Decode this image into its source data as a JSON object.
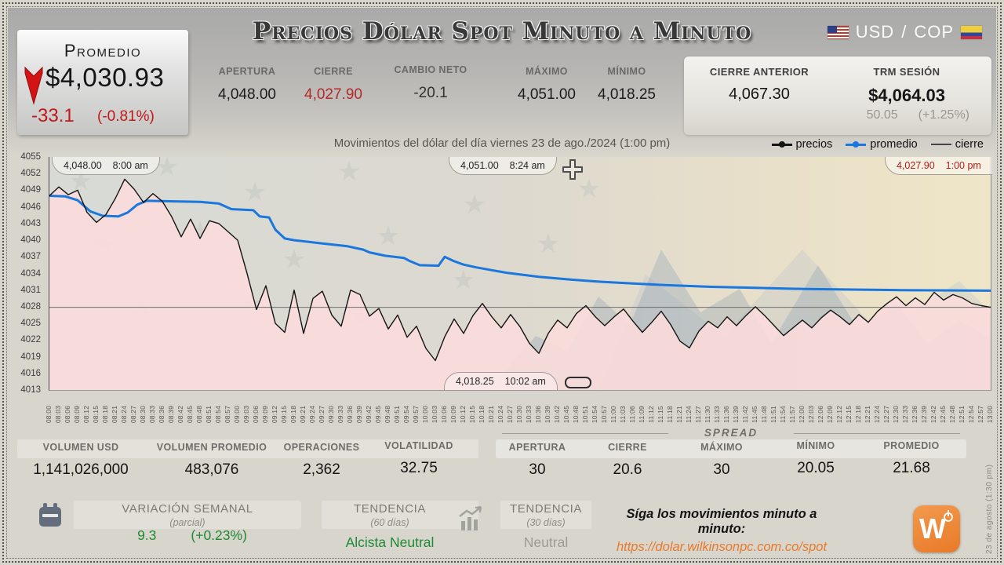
{
  "colors": {
    "accent_blue": "#1a77dd",
    "negative_red": "#c01818",
    "positive_green": "#1f8a34",
    "orange": "#e87a2a",
    "area_pink": "#fbdcdc",
    "price_black": "#141414",
    "cierre_grey": "#6e6e6e"
  },
  "header": {
    "title": "Precios Dólar Spot Minuto a Minuto",
    "pair": {
      "base": "USD",
      "sep": "/",
      "quote": "COP"
    },
    "promedio": {
      "label": "Promedio",
      "value": "$4,030.93",
      "change": "-33.1",
      "change_pct": "(-0.81%)"
    },
    "session_stats": [
      {
        "label": "APERTURA",
        "value": "4,048.00"
      },
      {
        "label": "CIERRE",
        "value": "4,027.90"
      },
      {
        "label": "CAMBIO NETO",
        "value": "-20.1"
      },
      {
        "label": "MÁXIMO",
        "value": "4,051.00"
      },
      {
        "label": "MÍNIMO",
        "value": "4,018.25"
      }
    ],
    "cierre_anterior": {
      "label": "CIERRE ANTERIOR",
      "value": "4,067.30"
    },
    "trm": {
      "label": "TRM SESIÓN",
      "value": "$4,064.03",
      "sub_value": "50.05",
      "sub_pct": "(+1.25%)"
    }
  },
  "chart_data": {
    "type": "line",
    "title": "Movimientos del dólar del día viernes 23 de ago./2024 (1:00 pm)",
    "ylabel": "",
    "xlabel": "",
    "ylim": [
      4013,
      4055
    ],
    "y_ticks": [
      4055,
      4052,
      4049,
      4046,
      4043,
      4040,
      4037,
      4034,
      4031,
      4028,
      4025,
      4022,
      4019,
      4016,
      4013
    ],
    "x_labels": [
      "08:00",
      "08:03",
      "08:06",
      "08:09",
      "08:12",
      "08:15",
      "08:18",
      "08:21",
      "08:24",
      "08:27",
      "08:30",
      "08:33",
      "08:36",
      "08:39",
      "08:42",
      "08:45",
      "08:48",
      "08:51",
      "08:54",
      "08:57",
      "09:00",
      "09:03",
      "09:06",
      "09:09",
      "09:12",
      "09:15",
      "09:18",
      "09:21",
      "09:24",
      "09:27",
      "09:30",
      "09:33",
      "09:36",
      "09:39",
      "09:42",
      "09:45",
      "09:48",
      "09:51",
      "09:54",
      "09:57",
      "10:00",
      "10:03",
      "10:06",
      "10:09",
      "10:12",
      "10:15",
      "10:18",
      "10:21",
      "10:24",
      "10:27",
      "10:30",
      "10:33",
      "10:36",
      "10:39",
      "10:42",
      "10:45",
      "10:48",
      "10:51",
      "10:54",
      "10:57",
      "11:00",
      "11:03",
      "11:06",
      "11:09",
      "11:12",
      "11:15",
      "11:18",
      "11:21",
      "11:24",
      "11:27",
      "11:30",
      "11:33",
      "11:36",
      "11:39",
      "11:42",
      "11:45",
      "11:48",
      "11:51",
      "11:54",
      "11:57",
      "12:00",
      "12:03",
      "12:06",
      "12:09",
      "12:12",
      "12:15",
      "12:18",
      "12:21",
      "12:24",
      "12:27",
      "12:30",
      "12:33",
      "12:36",
      "12:39",
      "12:42",
      "12:45",
      "12:48",
      "12:51",
      "12:54",
      "12:57",
      "13:00"
    ],
    "series": [
      {
        "name": "precios",
        "color": "#141414",
        "values": [
          4048.0,
          4049.6,
          4048.2,
          4049.0,
          4045.0,
          4043.2,
          4044.6,
          4047.5,
          4051.0,
          4049.2,
          4046.8,
          4048.4,
          4047.0,
          4044.2,
          4040.6,
          4043.8,
          4040.3,
          4043.5,
          4043.0,
          4041.5,
          4040.0,
          4034.0,
          4027.5,
          4031.8,
          4025.0,
          4023.4,
          4031.0,
          4023.2,
          4029.5,
          4030.8,
          4026.5,
          4024.5,
          4031.0,
          4030.2,
          4026.3,
          4027.7,
          4024.0,
          4026.5,
          4022.5,
          4024.5,
          4020.5,
          4018.3,
          4022.6,
          4025.8,
          4023.2,
          4026.4,
          4028.6,
          4026.2,
          4024.2,
          4026.6,
          4024.4,
          4021.4,
          4019.6,
          4023.2,
          4025.6,
          4024.2,
          4026.8,
          4028.2,
          4026.2,
          4024.6,
          4026.2,
          4027.6,
          4025.4,
          4023.4,
          4025.2,
          4027.2,
          4024.8,
          4021.8,
          4020.6,
          4023.6,
          4025.4,
          4024.2,
          4026.2,
          4024.6,
          4026.4,
          4028.0,
          4026.4,
          4024.6,
          4022.8,
          4024.2,
          4025.6,
          4024.2,
          4026.0,
          4027.4,
          4026.2,
          4024.8,
          4026.6,
          4025.2,
          4027.2,
          4028.6,
          4029.8,
          4028.2,
          4029.6,
          4028.4,
          4030.6,
          4029.2,
          4030.2,
          4029.6,
          4028.6,
          4028.2,
          4027.9
        ]
      },
      {
        "name": "promedio",
        "color": "#1a77dd",
        "points": [
          [
            "08:00",
            4048.0
          ],
          [
            "08:05",
            4047.9
          ],
          [
            "08:09",
            4047.2
          ],
          [
            "08:13",
            4045.2
          ],
          [
            "08:17",
            4044.4
          ],
          [
            "08:22",
            4044.3
          ],
          [
            "08:25",
            4045.0
          ],
          [
            "08:28",
            4046.4
          ],
          [
            "08:31",
            4047.1
          ],
          [
            "08:40",
            4047.0
          ],
          [
            "08:48",
            4046.9
          ],
          [
            "08:54",
            4046.6
          ],
          [
            "08:58",
            4045.6
          ],
          [
            "09:05",
            4045.4
          ],
          [
            "09:07",
            4044.3
          ],
          [
            "09:10",
            4044.1
          ],
          [
            "09:12",
            4041.9
          ],
          [
            "09:15",
            4040.3
          ],
          [
            "09:18",
            4040.0
          ],
          [
            "09:27",
            4039.4
          ],
          [
            "09:35",
            4038.9
          ],
          [
            "09:40",
            4038.3
          ],
          [
            "09:42",
            4037.8
          ],
          [
            "09:47",
            4037.2
          ],
          [
            "09:53",
            4036.8
          ],
          [
            "09:55",
            4036.2
          ],
          [
            "09:58",
            4035.5
          ],
          [
            "10:04",
            4035.4
          ],
          [
            "10:06",
            4037.0
          ],
          [
            "10:09",
            4036.2
          ],
          [
            "10:12",
            4035.6
          ],
          [
            "10:16",
            4035.1
          ],
          [
            "10:21",
            4034.6
          ],
          [
            "10:26",
            4034.1
          ],
          [
            "10:36",
            4033.4
          ],
          [
            "10:46",
            4032.9
          ],
          [
            "10:56",
            4032.5
          ],
          [
            "11:06",
            4032.2
          ],
          [
            "11:16",
            4031.9
          ],
          [
            "11:31",
            4031.6
          ],
          [
            "11:46",
            4031.4
          ],
          [
            "12:01",
            4031.2
          ],
          [
            "12:16",
            4031.1
          ],
          [
            "12:31",
            4031.0
          ],
          [
            "13:00",
            4030.9
          ]
        ]
      },
      {
        "name": "cierre",
        "color": "#6e6e6e",
        "value": 4027.9
      }
    ],
    "area_fill": "#fbdcdc",
    "annotations": [
      {
        "id": "apertura",
        "value": "4,048.00",
        "time": "8:00 am"
      },
      {
        "id": "maximo",
        "value": "4,051.00",
        "time": "8:24 am"
      },
      {
        "id": "minimo",
        "value": "4,018.25",
        "time": "10:02 am"
      },
      {
        "id": "cierre_final",
        "value": "4,027.90",
        "time": "1:00 pm"
      }
    ],
    "legend_position": "top-right",
    "grid": false
  },
  "volume_stats": [
    {
      "label": "VOLUMEN USD",
      "value": "1,141,026,000"
    },
    {
      "label": "VOLUMEN PROMEDIO",
      "value": "483,076"
    },
    {
      "label": "OPERACIONES",
      "value": "2,362"
    },
    {
      "label": "VOLATILIDAD",
      "value": "32.75"
    }
  ],
  "spread": {
    "title": "SPREAD",
    "items": [
      {
        "label": "APERTURA",
        "value": "30"
      },
      {
        "label": "CIERRE",
        "value": "20.6"
      },
      {
        "label": "MÁXIMO",
        "value": "30"
      },
      {
        "label": "MÍNIMO",
        "value": "20.05"
      },
      {
        "label": "PROMEDIO",
        "value": "21.68"
      }
    ]
  },
  "footer": {
    "variacion": {
      "label": "VARIACIÓN SEMANAL",
      "sublabel": "(parcial)",
      "value": "9.3",
      "pct": "(+0.23%)"
    },
    "tendencia60": {
      "label": "TENDENCIA",
      "sublabel": "(60 días)",
      "value": "Alcista Neutral"
    },
    "tendencia30": {
      "label": "TENDENCIA",
      "sublabel": "(30 días)",
      "value": "Neutral"
    },
    "follow": {
      "text": "Síga los movimientos minuto a minuto:",
      "url": "https://dolar.wilkinsonpc.com.co/spot"
    },
    "logo_letter": "W",
    "sidebar_date": "23 de agosto (1:30 pm)"
  }
}
